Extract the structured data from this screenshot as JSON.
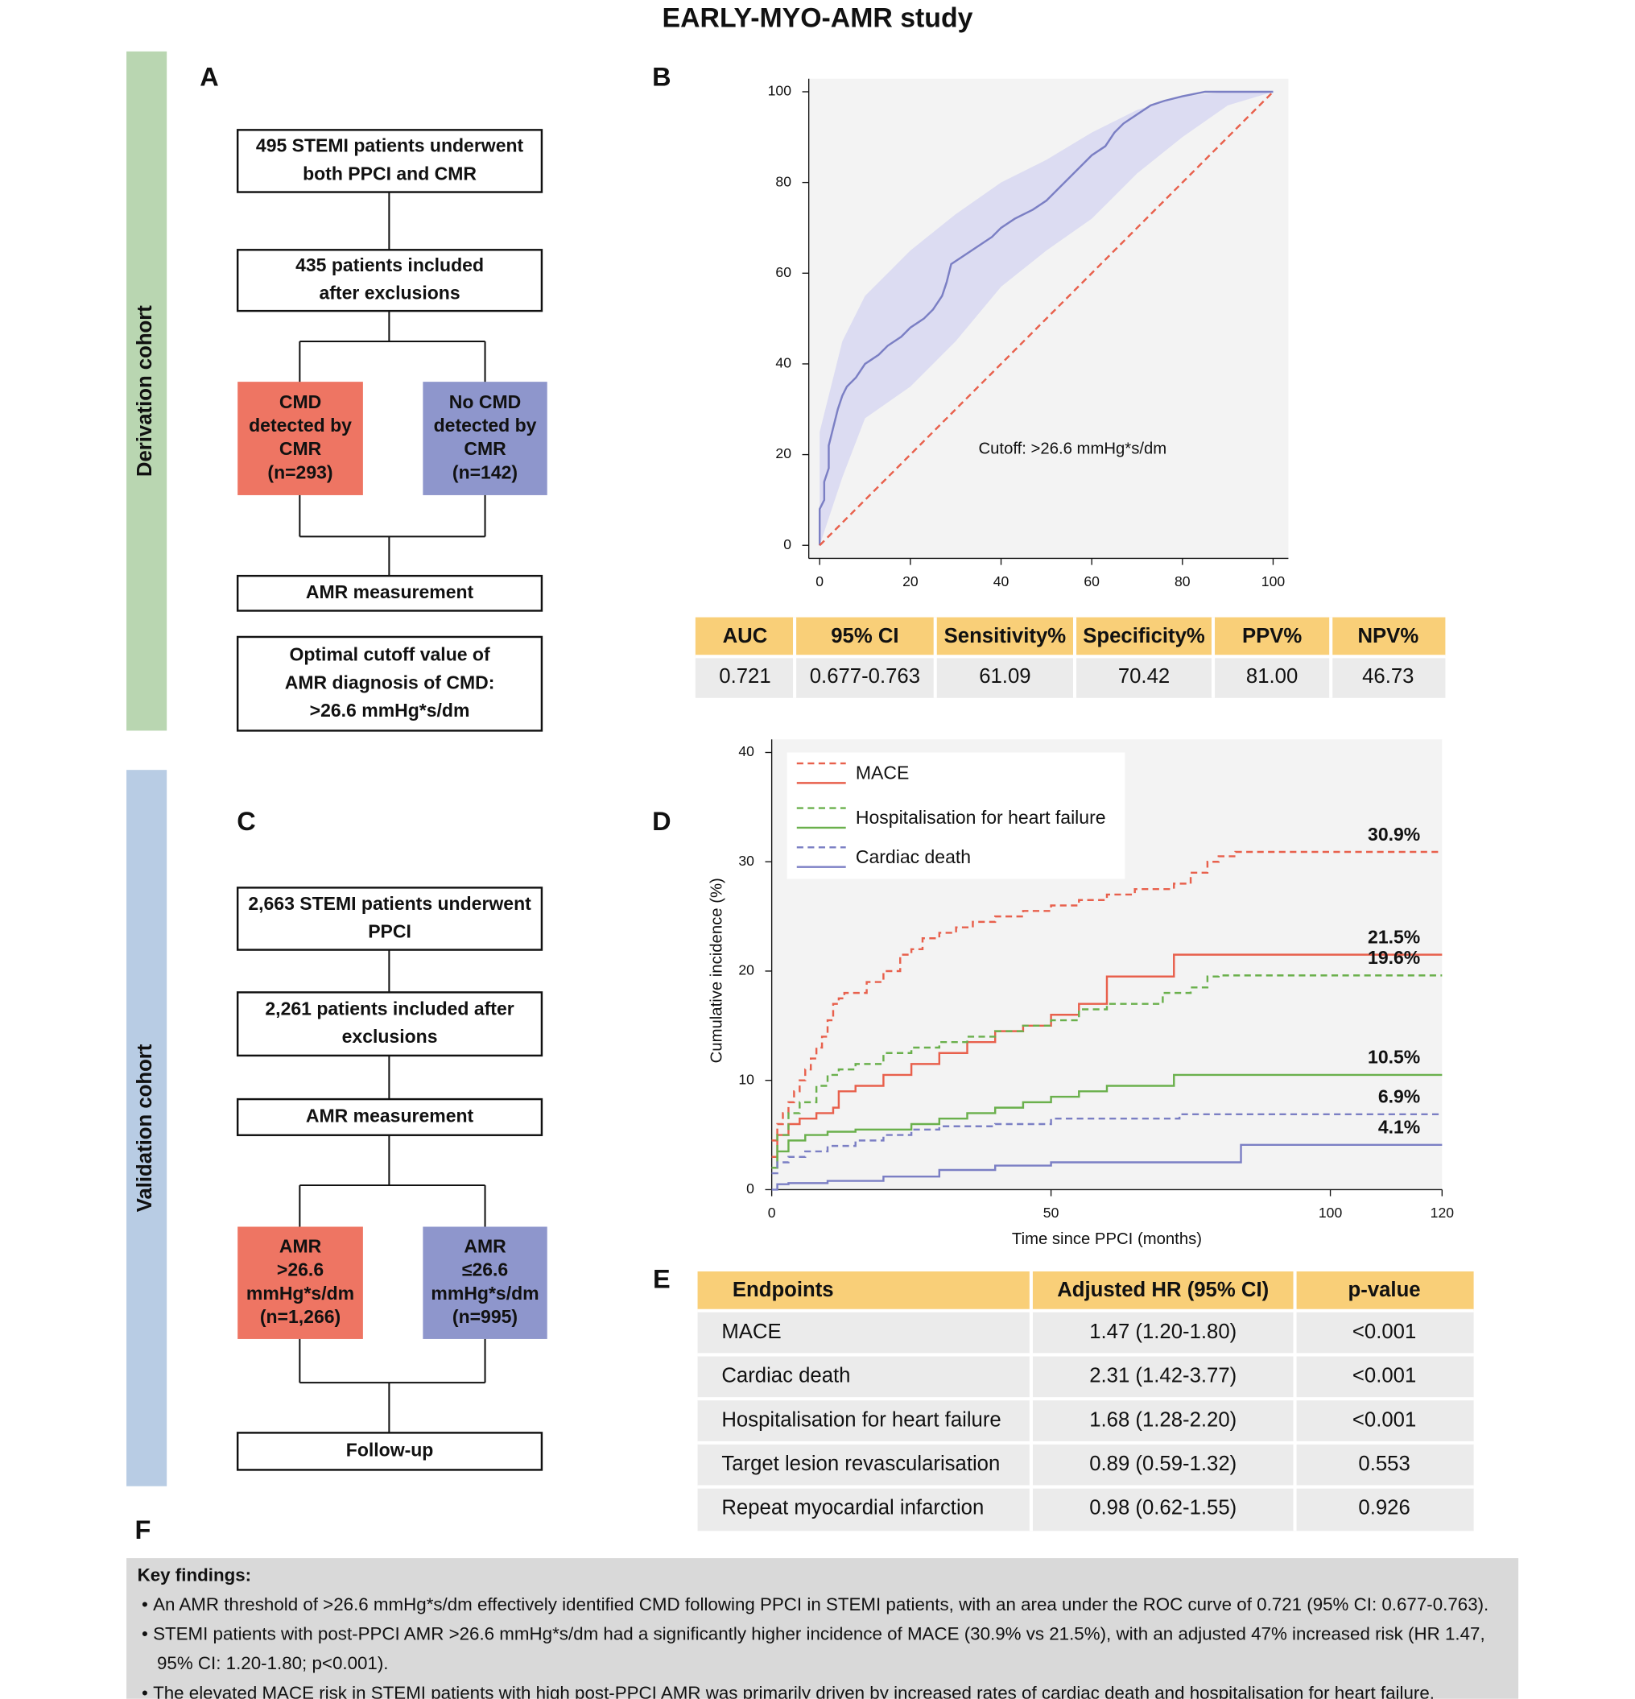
{
  "title": "EARLY-MYO-AMR study",
  "sidebars": [
    "Derivation cohort",
    "Validation cohort"
  ],
  "panel_labels": [
    "A",
    "B",
    "C",
    "D",
    "E",
    "F"
  ],
  "flowchart_a": {
    "nodes": [
      {
        "lines": [
          "495  STEMI patients underwent",
          "both PPCI and CMR"
        ]
      },
      {
        "lines": [
          "435 patients included",
          "after exclusions"
        ]
      },
      {
        "lines": [
          "CMD",
          "detected by",
          "CMR",
          "(n=293)"
        ],
        "color": "#ee7563"
      },
      {
        "lines": [
          "No CMD",
          "detected by",
          "CMR",
          "(n=142)"
        ],
        "color": "#8e96cc"
      },
      {
        "lines": [
          "AMR measurement"
        ]
      },
      {
        "lines": [
          "Optimal cutoff value of",
          "AMR diagnosis of CMD:",
          ">26.6 mmHg*s/dm"
        ]
      }
    ]
  },
  "flowchart_c": {
    "nodes": [
      {
        "lines": [
          "2,663 STEMI patients underwent",
          "PPCI"
        ]
      },
      {
        "lines": [
          "2,261 patients included after",
          "exclusions"
        ]
      },
      {
        "lines": [
          "AMR measurement"
        ]
      },
      {
        "lines": [
          "AMR",
          ">26.6",
          "mmHg*s/dm",
          "(n=1,266)"
        ],
        "color": "#ee7563"
      },
      {
        "lines": [
          "AMR",
          "≤26.6",
          "mmHg*s/dm",
          "(n=995)"
        ],
        "color": "#8e96cc"
      },
      {
        "lines": [
          "Follow-up"
        ]
      }
    ]
  },
  "chart_data": [
    {
      "type": "line",
      "xlim": [
        0,
        100
      ],
      "xticks": [
        0,
        20,
        40,
        60,
        80,
        100
      ],
      "ylim": [
        0,
        100
      ],
      "yticks": [
        0,
        20,
        40,
        60,
        80,
        100
      ],
      "annotation": "Cutoff: >26.6 mmHg*s/dm",
      "band": {
        "color": "#dcdcf2",
        "x": [
          0,
          5,
          10,
          20,
          30,
          40,
          50,
          60,
          70,
          80,
          90,
          100
        ],
        "upper": [
          25,
          45,
          55,
          65,
          73,
          80,
          85,
          91,
          96,
          99,
          100,
          100
        ],
        "lower": [
          0,
          15,
          28,
          35,
          45,
          57,
          65,
          72,
          82,
          90,
          97,
          100
        ]
      },
      "series": [
        {
          "color": "#7b7fc4",
          "dashed": false,
          "x": [
            0,
            0,
            1,
            1,
            2,
            2,
            3,
            4,
            5,
            6,
            8,
            10,
            13,
            15,
            18,
            20,
            23,
            25,
            27,
            28,
            29,
            32,
            35,
            38,
            40,
            43,
            47,
            50,
            53,
            56,
            58,
            60,
            63,
            65,
            67,
            70,
            73,
            76,
            80,
            85,
            100
          ],
          "values": [
            0,
            8,
            10,
            14,
            17,
            22,
            26,
            30,
            33,
            35,
            37,
            40,
            42,
            44,
            46,
            48,
            50,
            52,
            55,
            58,
            62,
            64,
            66,
            68,
            70,
            72,
            74,
            76,
            79,
            82,
            84,
            86,
            88,
            91,
            93,
            95,
            97,
            98,
            99,
            100,
            100
          ]
        },
        {
          "color": "#e8604c",
          "dashed": true,
          "x": [
            0,
            100
          ],
          "values": [
            0,
            100
          ]
        }
      ]
    },
    {
      "type": "line",
      "step": true,
      "xlim": [
        0,
        120
      ],
      "xticks": [
        0,
        50,
        100,
        120
      ],
      "ylim": [
        0,
        40
      ],
      "yticks": [
        0,
        10,
        20,
        30,
        40
      ],
      "xlabel": "Time since PPCI (months)",
      "ylabel": "Cumulative incidence (%)",
      "series": [
        {
          "name": "MACE",
          "color": "#e8604c",
          "dashed": true,
          "end_label": "30.9%",
          "x": [
            0,
            1,
            2,
            3,
            4,
            5,
            6,
            7,
            8,
            9,
            10,
            11,
            12,
            13,
            15,
            17,
            20,
            23,
            25,
            27,
            30,
            33,
            36,
            40,
            45,
            50,
            55,
            60,
            65,
            70,
            72,
            75,
            78,
            80,
            83,
            120
          ],
          "values": [
            4.5,
            6,
            7,
            8,
            9,
            10,
            11,
            12,
            13,
            14,
            15.5,
            17,
            17.5,
            18,
            18,
            19,
            20,
            21.5,
            22,
            23,
            23.5,
            24,
            24.5,
            25,
            25.5,
            26,
            26.5,
            27,
            27.5,
            27.5,
            28,
            29,
            30,
            30.5,
            30.9,
            30.9
          ]
        },
        {
          "name": "MACE",
          "color": "#e8604c",
          "dashed": false,
          "end_label": "21.5%",
          "x": [
            0,
            1,
            3,
            5,
            8,
            11,
            12,
            15,
            20,
            25,
            30,
            35,
            40,
            45,
            50,
            55,
            60,
            70,
            72,
            120
          ],
          "values": [
            3,
            5,
            6,
            6.5,
            7,
            7.5,
            9,
            9.5,
            10.5,
            11.5,
            12.5,
            13.5,
            14.5,
            15,
            16,
            17,
            19.5,
            19.5,
            21.5,
            21.5
          ]
        },
        {
          "name": "Hospitalisation for heart failure",
          "color": "#6ab04c",
          "dashed": true,
          "end_label": "19.6%",
          "x": [
            0,
            1,
            3,
            5,
            8,
            10,
            12,
            15,
            20,
            25,
            30,
            35,
            40,
            45,
            50,
            55,
            60,
            65,
            70,
            75,
            78,
            80,
            120
          ],
          "values": [
            2,
            5,
            7,
            8,
            9.5,
            10.5,
            11,
            11.5,
            12.5,
            13,
            13.5,
            14,
            14.5,
            15,
            15.5,
            16.5,
            17,
            17,
            18,
            18.5,
            19.5,
            19.6,
            19.6
          ]
        },
        {
          "name": "Hospitalisation for heart failure",
          "color": "#6ab04c",
          "dashed": false,
          "end_label": "10.5%",
          "x": [
            0,
            1,
            3,
            6,
            10,
            15,
            20,
            25,
            30,
            35,
            40,
            45,
            50,
            55,
            60,
            70,
            72,
            120
          ],
          "values": [
            2,
            3.5,
            4.5,
            5,
            5.3,
            5.5,
            5.5,
            6,
            6.5,
            7,
            7.5,
            8,
            8.5,
            9,
            9.5,
            9.5,
            10.5,
            10.5
          ]
        },
        {
          "name": "Cardiac death",
          "color": "#7b7fc4",
          "dashed": true,
          "end_label": "6.9%",
          "x": [
            0,
            1,
            3,
            6,
            10,
            15,
            20,
            25,
            30,
            40,
            50,
            55,
            60,
            70,
            73,
            120
          ],
          "values": [
            1.5,
            2.5,
            3,
            3.5,
            4,
            4.5,
            5,
            5.5,
            5.8,
            6,
            6.5,
            6.5,
            6.5,
            6.5,
            6.9,
            6.9
          ]
        },
        {
          "name": "Cardiac death",
          "color": "#7b7fc4",
          "dashed": false,
          "end_label": "4.1%",
          "x": [
            0,
            1,
            3,
            10,
            20,
            30,
            40,
            50,
            60,
            84,
            120
          ],
          "values": [
            0,
            0.5,
            0.6,
            0.8,
            1.2,
            1.8,
            2.2,
            2.5,
            2.5,
            4.1,
            4.1
          ]
        }
      ]
    }
  ],
  "table_b": {
    "header": [
      "AUC",
      "95% CI",
      "Sensitivity%",
      "Specificity%",
      "PPV%",
      "NPV%"
    ],
    "rows": [
      [
        "0.721",
        "0.677-0.763",
        "61.09",
        "70.42",
        "81.00",
        "46.73"
      ]
    ]
  },
  "table_e": {
    "header": [
      "Endpoints",
      "Adjusted HR (95% CI)",
      "p-value"
    ],
    "rows": [
      [
        "MACE",
        "1.47 (1.20-1.80)",
        "<0.001"
      ],
      [
        "Cardiac death",
        "2.31 (1.42-3.77)",
        "<0.001"
      ],
      [
        "Hospitalisation for heart failure",
        "1.68 (1.28-2.20)",
        "<0.001"
      ],
      [
        "Target lesion revascularisation",
        "0.89 (0.59-1.32)",
        "0.553"
      ],
      [
        "Repeat myocardial infarction",
        "0.98 (0.62-1.55)",
        "0.926"
      ]
    ]
  },
  "key_findings": {
    "heading": "Key findings:",
    "bullets": [
      "An AMR threshold of >26.6 mmHg*s/dm effectively identified CMD following PPCI in STEMI patients, with an area under the ROC curve of 0.721 (95% CI: 0.677-0.763).",
      "STEMI patients with post-PPCI AMR >26.6 mmHg*s/dm had a significantly higher incidence of MACE (30.9% vs 21.5%), with an adjusted 47% increased risk (HR 1.47, 95% CI: 1.20-1.80; p<0.001).",
      "The elevated MACE risk in STEMI patients with high post-PPCI AMR was primarily driven by increased rates of cardiac death and hospitalisation for heart failure."
    ]
  }
}
